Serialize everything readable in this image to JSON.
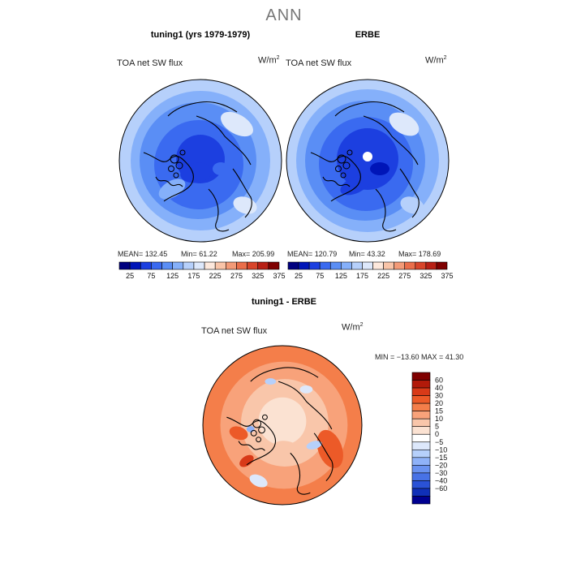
{
  "page_title": "ANN",
  "panels": [
    {
      "title": "tuning1 (yrs 1979-1979)",
      "variable": "TOA net SW flux",
      "units": "W/m",
      "units_exp": "2",
      "mean_label": "MEAN= 132.45",
      "min_label": "Min=  61.22",
      "max_label": "Max= 205.99"
    },
    {
      "title": "ERBE",
      "variable": "TOA net SW flux",
      "units": "W/m",
      "units_exp": "2",
      "mean_label": "MEAN= 120.79",
      "min_label": "Min=  43.32",
      "max_label": "Max= 178.69"
    },
    {
      "title": "tuning1 - ERBE",
      "variable": "TOA net SW flux",
      "units": "W/m",
      "units_exp": "2",
      "minmax_label": "MIN = −13.60 MAX =  41.30"
    }
  ],
  "colors": {
    "abs_scale": [
      "#00007f",
      "#0015b8",
      "#1c3fe0",
      "#3a6af0",
      "#5a8ef5",
      "#85b0fa",
      "#b6d0fb",
      "#dde8fb",
      "#fde8dc",
      "#f9c4a8",
      "#f39a77",
      "#ea6e4a",
      "#d8452a",
      "#b82015",
      "#7f0000"
    ],
    "diff_scale": [
      "#7f0000",
      "#b21a0a",
      "#d83a18",
      "#ec5a28",
      "#f47e4a",
      "#f8a27a",
      "#f9c6aa",
      "#fbe2d2",
      "#ffffff",
      "#dde8fb",
      "#b6d0fb",
      "#8fb2f8",
      "#6a92f0",
      "#4872e6",
      "#2a52d6",
      "#1030b8",
      "#000090"
    ]
  },
  "chart_data": [
    {
      "type": "heatmap",
      "title": "tuning1 (yrs 1979-1979)",
      "subtitle": "TOA net SW flux",
      "units": "W/m2",
      "projection": "north polar stereographic",
      "stats": {
        "mean": 132.45,
        "min": 61.22,
        "max": 205.99
      },
      "colorbar_ticks": [
        "25",
        "75",
        "125",
        "175",
        "225",
        "275",
        "325",
        "375"
      ],
      "colorbar_levels": [
        25,
        50,
        75,
        100,
        125,
        150,
        175,
        200,
        225,
        250,
        275,
        300,
        325,
        350,
        375
      ]
    },
    {
      "type": "heatmap",
      "title": "ERBE",
      "subtitle": "TOA net SW flux",
      "units": "W/m2",
      "projection": "north polar stereographic",
      "stats": {
        "mean": 120.79,
        "min": 43.32,
        "max": 178.69
      },
      "colorbar_ticks": [
        "25",
        "75",
        "125",
        "175",
        "225",
        "275",
        "325",
        "375"
      ],
      "colorbar_levels": [
        25,
        50,
        75,
        100,
        125,
        150,
        175,
        200,
        225,
        250,
        275,
        300,
        325,
        350,
        375
      ]
    },
    {
      "type": "heatmap",
      "title": "tuning1 - ERBE",
      "subtitle": "TOA net SW flux",
      "units": "W/m2",
      "projection": "north polar stereographic",
      "stats": {
        "min": -13.6,
        "max": 41.3
      },
      "colorbar_ticks": [
        "60",
        "40",
        "30",
        "20",
        "15",
        "10",
        "5",
        "0",
        "−5",
        "−10",
        "−15",
        "−20",
        "−30",
        "−40",
        "−60"
      ]
    }
  ]
}
